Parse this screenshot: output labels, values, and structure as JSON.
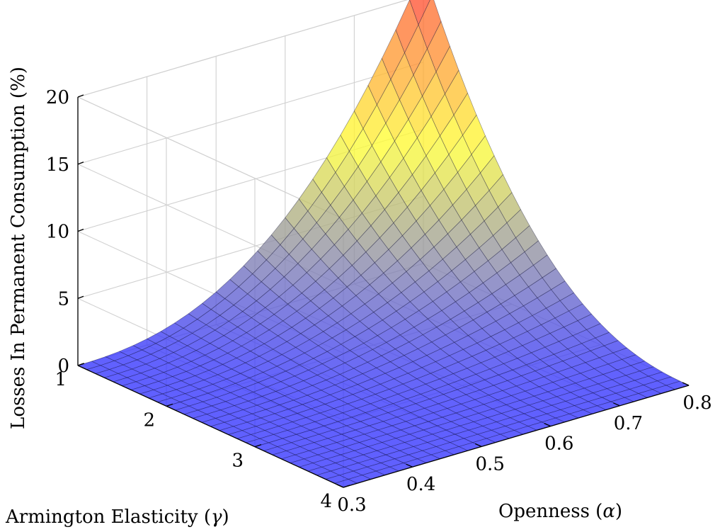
{
  "chart_data": {
    "type": "surface",
    "zlabel": "Losses In Permanent Consumption (%)",
    "xlabel": "Openness (α)",
    "ylabel": "Armington Elasticity (γ)",
    "xlabel_text": "Openness (",
    "xlabel_sym": "α",
    "ylabel_text": "Armington Elasticity (",
    "ylabel_sym": "γ",
    "label_close": ")",
    "xlim": [
      0.3,
      0.8
    ],
    "ylim": [
      1,
      4
    ],
    "zlim": [
      0,
      20
    ],
    "xticks": [
      "0.3",
      "0.4",
      "0.5",
      "0.6",
      "0.7",
      "0.8"
    ],
    "yticks": [
      "1",
      "2",
      "3",
      "4"
    ],
    "zticks": [
      "0",
      "5",
      "10",
      "15",
      "20"
    ],
    "grid": true,
    "colormap": [
      "#3333ff",
      "#ffff33",
      "#ff3333"
    ],
    "grid_resolution": {
      "x": 26,
      "y": 31
    },
    "surface_corners": [
      {
        "x": 0.3,
        "y": 1,
        "z": 0.0
      },
      {
        "x": 0.8,
        "y": 1,
        "z": 22.0
      },
      {
        "x": 0.3,
        "y": 4,
        "z": 0.0
      },
      {
        "x": 0.8,
        "y": 4,
        "z": 0.0
      }
    ]
  }
}
